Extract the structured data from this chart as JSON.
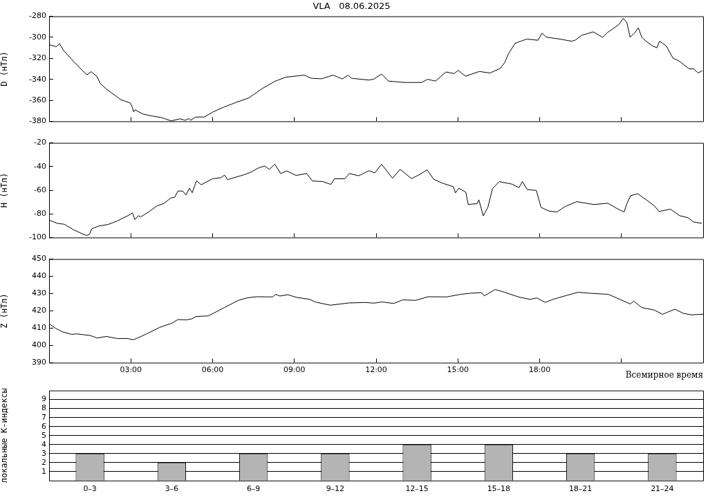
{
  "chart_data": [
    {
      "type": "line",
      "title": "VLA   08.06.2025",
      "ylabel": "D (нТл)",
      "xlim": [
        0,
        24
      ],
      "xticks": [
        {
          "value": 3,
          "label": null
        },
        {
          "value": 6,
          "label": null
        },
        {
          "value": 9,
          "label": null
        },
        {
          "value": 12,
          "label": null
        },
        {
          "value": 15,
          "label": null
        },
        {
          "value": 18,
          "label": null
        },
        {
          "value": 21,
          "label": null
        }
      ],
      "ylim": [
        -380,
        -280
      ],
      "yticks": [
        -380,
        -360,
        -340,
        -320,
        -300,
        -280
      ],
      "tick_labels": "y",
      "line_style": "solid",
      "series": [
        {
          "color": "#000000",
          "x": [
            0,
            0.27,
            0.38,
            0.53,
            0.9,
            1.2,
            1.39,
            1.54,
            1.75,
            1.88,
            2.09,
            2.43,
            2.64,
            2.98,
            3.06,
            3.1,
            3.15,
            3.44,
            3.78,
            4.12,
            4.48,
            4.8,
            4.99,
            5.13,
            5.2,
            5.37,
            5.7,
            6.02,
            6.4,
            6.9,
            7.33,
            7.84,
            8.3,
            8.68,
            9.36,
            9.62,
            10.0,
            10.42,
            10.76,
            10.97,
            11.1,
            11.73,
            11.9,
            12.2,
            12.45,
            13.04,
            13.67,
            13.89,
            14.18,
            14.56,
            14.86,
            15.01,
            15.28,
            15.79,
            16.17,
            16.55,
            16.72,
            16.85,
            17.1,
            17.31,
            17.52,
            17.94,
            18.09,
            18.24,
            18.75,
            19.17,
            19.3,
            19.55,
            19.97,
            20.31,
            20.48,
            20.9,
            21.07,
            21.2,
            21.32,
            21.49,
            21.62,
            21.75,
            21.92,
            22.13,
            22.3,
            22.4,
            22.64,
            22.89,
            23.14,
            23.48,
            23.65,
            23.82,
            23.97
          ],
          "values": [
            -307,
            -309,
            -306,
            -312.5,
            -323,
            -331,
            -335.7,
            -332.7,
            -337,
            -344,
            -349,
            -355.5,
            -359.5,
            -362.5,
            -367,
            -371,
            -369,
            -373,
            -375,
            -376.4,
            -379.6,
            -377.6,
            -379,
            -377.4,
            -379,
            -376,
            -375.8,
            -371,
            -366.6,
            -361.6,
            -357.7,
            -348.5,
            -341.7,
            -338,
            -336,
            -339,
            -339.5,
            -336,
            -339.7,
            -336,
            -339,
            -340.7,
            -340,
            -335,
            -341.7,
            -343,
            -343,
            -340,
            -341.7,
            -333,
            -334.5,
            -331.5,
            -337,
            -332.5,
            -334,
            -329.7,
            -324,
            -316,
            -305.7,
            -303.7,
            -301.7,
            -302.8,
            -296,
            -299.8,
            -301.7,
            -303.7,
            -302.8,
            -298,
            -294.8,
            -300,
            -295.6,
            -288,
            -282,
            -286,
            -299.8,
            -295.8,
            -291,
            -300,
            -304,
            -308,
            -310,
            -303.7,
            -308,
            -319.7,
            -323,
            -330,
            -330,
            -334,
            -331.7
          ]
        }
      ]
    },
    {
      "type": "line",
      "ylabel": "H (нТл)",
      "xlim": [
        0,
        24
      ],
      "xticks": [
        {
          "value": 3,
          "label": null
        },
        {
          "value": 6,
          "label": null
        },
        {
          "value": 9,
          "label": null
        },
        {
          "value": 12,
          "label": null
        },
        {
          "value": 15,
          "label": null
        },
        {
          "value": 18,
          "label": null
        },
        {
          "value": 21,
          "label": null
        }
      ],
      "ylim": [
        -100,
        -20
      ],
      "yticks": [
        -100,
        -80,
        -60,
        -40,
        -20
      ],
      "tick_labels": "y",
      "line_style": "solid",
      "series": [
        {
          "color": "#000000",
          "x": [
            0,
            0.3,
            0.56,
            0.9,
            1.2,
            1.39,
            1.49,
            1.56,
            1.82,
            2.16,
            2.5,
            2.98,
            3.06,
            3.15,
            3.28,
            3.36,
            3.7,
            3.96,
            4.21,
            4.47,
            4.6,
            4.73,
            4.9,
            5.02,
            5.15,
            5.25,
            5.41,
            5.58,
            6.0,
            6.3,
            6.44,
            6.55,
            6.85,
            7.19,
            7.45,
            7.66,
            7.91,
            8.08,
            8.28,
            8.5,
            8.72,
            9.06,
            9.45,
            9.66,
            10.04,
            10.34,
            10.47,
            10.85,
            11.02,
            11.36,
            11.74,
            11.95,
            12.2,
            12.6,
            12.88,
            13.3,
            13.6,
            13.87,
            14.11,
            14.44,
            14.83,
            14.91,
            15.04,
            15.29,
            15.38,
            15.71,
            15.77,
            15.93,
            16.1,
            16.27,
            16.52,
            16.99,
            17.24,
            17.37,
            17.54,
            17.88,
            18.05,
            18.34,
            18.64,
            18.94,
            19.36,
            19.99,
            20.5,
            20.88,
            21.1,
            21.2,
            21.34,
            21.6,
            21.96,
            22.21,
            22.38,
            22.8,
            23.14,
            23.44,
            23.65,
            23.95
          ],
          "values": [
            -85.2,
            -88,
            -88.8,
            -93.5,
            -96.7,
            -98.3,
            -97,
            -92.7,
            -90.3,
            -89,
            -86,
            -80.5,
            -79.2,
            -84.8,
            -81.5,
            -82.6,
            -77.6,
            -73.2,
            -71.3,
            -66.5,
            -66,
            -60.7,
            -60.7,
            -64.1,
            -58.3,
            -62.1,
            -52,
            -55.4,
            -50.3,
            -49.4,
            -47.2,
            -51.1,
            -49,
            -46.7,
            -44.3,
            -41.4,
            -39.5,
            -42.4,
            -38,
            -45.9,
            -43.7,
            -47.5,
            -45.9,
            -52.2,
            -52.7,
            -55.1,
            -50.3,
            -50.3,
            -45.9,
            -47.8,
            -43.5,
            -45.4,
            -38,
            -49.9,
            -42.4,
            -50.2,
            -46.7,
            -42.7,
            -50.7,
            -54.1,
            -57,
            -62.2,
            -58.3,
            -61.7,
            -72.1,
            -71.3,
            -68.1,
            -81.6,
            -74.5,
            -58.6,
            -52.7,
            -54.9,
            -57.8,
            -52.7,
            -59.4,
            -60.2,
            -74.5,
            -77.6,
            -78.4,
            -73.7,
            -69.7,
            -72.1,
            -71,
            -76,
            -78.4,
            -71.3,
            -64.6,
            -63,
            -68.9,
            -73.2,
            -78,
            -76,
            -81.6,
            -83.2,
            -86.9,
            -88
          ]
        }
      ]
    },
    {
      "type": "line",
      "ylabel": "Z (нТл)",
      "xlabel": "Всемирное время",
      "xlim": [
        0,
        24
      ],
      "xticks": [
        {
          "value": 3,
          "label": "03:00"
        },
        {
          "value": 6,
          "label": "06:00"
        },
        {
          "value": 9,
          "label": "09:00"
        },
        {
          "value": 12,
          "label": "12:00"
        },
        {
          "value": 15,
          "label": "15:00"
        },
        {
          "value": 18,
          "label": "18:00"
        },
        {
          "value": 21,
          "label": null
        }
      ],
      "ylim": [
        390,
        450
      ],
      "yticks": [
        390,
        400,
        410,
        420,
        430,
        440,
        450
      ],
      "line_style": "solid",
      "series": [
        {
          "color": "#000000",
          "x": [
            0,
            0.23,
            0.49,
            0.83,
            1.0,
            1.5,
            1.76,
            2.1,
            2.5,
            2.87,
            3.1,
            3.54,
            4.05,
            4.52,
            4.73,
            5.03,
            5.24,
            5.4,
            5.84,
            6.43,
            6.94,
            7.28,
            7.62,
            8.21,
            8.31,
            8.47,
            8.76,
            9.06,
            9.56,
            9.78,
            10.32,
            11.0,
            11.6,
            11.92,
            12.22,
            12.64,
            12.98,
            13.44,
            13.91,
            14.59,
            15.1,
            15.44,
            15.87,
            15.97,
            16.37,
            16.71,
            17.22,
            17.64,
            17.9,
            18.2,
            18.49,
            19.0,
            19.42,
            19.85,
            20.52,
            21.03,
            21.33,
            21.45,
            21.75,
            22.21,
            22.51,
            22.64,
            22.96,
            23.27,
            23.57,
            24
          ],
          "values": [
            412.6,
            410,
            407.9,
            406.4,
            406.7,
            405.8,
            404.3,
            405.2,
            404,
            404,
            403.3,
            406.4,
            410.4,
            413,
            415,
            414.8,
            415.4,
            416.8,
            417.1,
            421.9,
            426.1,
            427.6,
            428.2,
            428.1,
            429.6,
            428.6,
            429.4,
            427.9,
            426.7,
            425.1,
            423.3,
            424.6,
            424.9,
            424.5,
            425.2,
            424.3,
            426.4,
            426.1,
            428.2,
            428.1,
            429.6,
            430.2,
            430.6,
            428.7,
            432.4,
            430.8,
            428.1,
            426.7,
            427.5,
            424.9,
            426.7,
            429,
            430.8,
            430.2,
            429.6,
            426.1,
            424,
            425.7,
            421.9,
            420.5,
            418,
            418.9,
            421,
            418.6,
            417.7,
            418.1
          ]
        }
      ]
    },
    {
      "type": "bar",
      "ylabel": "локальные К-индексы",
      "categories": [
        "0–3",
        "3–6",
        "6–9",
        "9–12",
        "12–15",
        "15–18",
        "18–21",
        "21–24"
      ],
      "values": [
        3,
        2,
        3,
        3,
        4,
        4,
        3,
        3
      ],
      "color": "#b4b4b4",
      "ylim": [
        0,
        10
      ],
      "yticks": [
        1,
        2,
        3,
        4,
        5,
        6,
        7,
        8,
        9
      ],
      "grid": "y"
    }
  ]
}
